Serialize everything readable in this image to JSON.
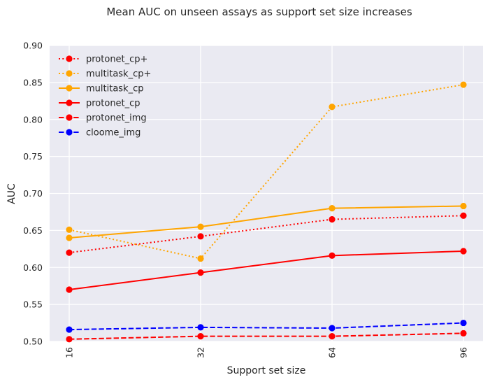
{
  "chart_data": {
    "type": "line",
    "title": "Mean AUC on unseen assays as support set size increases",
    "xlabel": "Support set size",
    "ylabel": "AUC",
    "categories": [
      "16",
      "32",
      "64",
      "96"
    ],
    "ylim": [
      0.5,
      0.9
    ],
    "yticks": [
      "0.50",
      "0.55",
      "0.60",
      "0.65",
      "0.70",
      "0.75",
      "0.80",
      "0.85",
      "0.90"
    ],
    "grid": true,
    "legend_position": "top-left",
    "series": [
      {
        "name": "protonet_cp+",
        "color": "#ff0000",
        "style": "dotted",
        "values": [
          0.62,
          0.642,
          0.665,
          0.67
        ]
      },
      {
        "name": "multitask_cp+",
        "color": "#ffa500",
        "style": "dotted",
        "values": [
          0.651,
          0.612,
          0.817,
          0.847
        ]
      },
      {
        "name": "multitask_cp",
        "color": "#ffa500",
        "style": "solid",
        "values": [
          0.64,
          0.655,
          0.68,
          0.683
        ]
      },
      {
        "name": "protonet_cp",
        "color": "#ff0000",
        "style": "solid",
        "values": [
          0.57,
          0.593,
          0.616,
          0.622
        ]
      },
      {
        "name": "protonet_img",
        "color": "#ff0000",
        "style": "dashed",
        "values": [
          0.503,
          0.507,
          0.507,
          0.511
        ]
      },
      {
        "name": "cloome_img",
        "color": "#0000ff",
        "style": "dashed",
        "values": [
          0.516,
          0.519,
          0.518,
          0.525
        ]
      }
    ]
  }
}
